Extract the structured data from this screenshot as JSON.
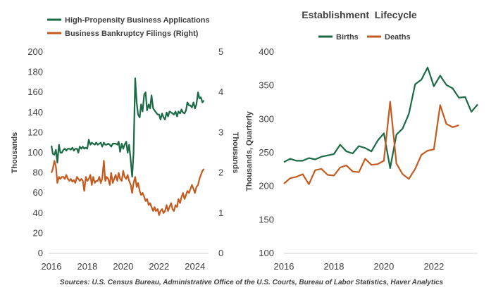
{
  "colors": {
    "green": "#1a6b45",
    "orange": "#c55a1e",
    "text": "#404040",
    "axis": "#d0d0d0"
  },
  "source": "Sources: U.S. Census Bureau, Administrative Office of the U.S. Courts, Bureau of Labor Statistics, Haver Analytics",
  "chart_data": [
    {
      "type": "line",
      "title": "",
      "legend_position": "top",
      "xlabel": "",
      "ylabel": "Thousands",
      "y2label": "Thousands",
      "xlim": [
        2016,
        2024.6
      ],
      "ylim": [
        0,
        200
      ],
      "y2lim": [
        0,
        5
      ],
      "x_ticks": [
        2016,
        2018,
        2020,
        2022,
        2024
      ],
      "x_tick_labels": [
        "2016",
        "2018",
        "2020",
        "2022",
        "2024"
      ],
      "y_ticks": [
        0,
        20,
        40,
        60,
        80,
        100,
        120,
        140,
        160,
        180,
        200
      ],
      "y_tick_labels": [
        "0",
        "20",
        "40",
        "60",
        "80",
        "100",
        "120",
        "140",
        "160",
        "180",
        "200"
      ],
      "y2_ticks": [
        0,
        1,
        2,
        3,
        4,
        5
      ],
      "y2_tick_labels": [
        "0",
        "1",
        "2",
        "3",
        "4",
        "5"
      ],
      "series": [
        {
          "name": "High-Propensity Business Applications",
          "axis": "left",
          "color": "green",
          "x": [
            2016.0,
            2016.08,
            2016.17,
            2016.25,
            2016.33,
            2016.42,
            2016.5,
            2016.58,
            2016.67,
            2016.75,
            2016.83,
            2016.92,
            2017.0,
            2017.08,
            2017.17,
            2017.25,
            2017.33,
            2017.42,
            2017.5,
            2017.58,
            2017.67,
            2017.75,
            2017.83,
            2017.92,
            2018.0,
            2018.08,
            2018.17,
            2018.25,
            2018.33,
            2018.42,
            2018.5,
            2018.58,
            2018.67,
            2018.75,
            2018.83,
            2018.92,
            2019.0,
            2019.08,
            2019.17,
            2019.25,
            2019.33,
            2019.42,
            2019.5,
            2019.58,
            2019.67,
            2019.75,
            2019.83,
            2019.92,
            2020.0,
            2020.08,
            2020.17,
            2020.25,
            2020.33,
            2020.42,
            2020.5,
            2020.58,
            2020.67,
            2020.75,
            2020.83,
            2020.92,
            2021.0,
            2021.08,
            2021.17,
            2021.25,
            2021.33,
            2021.42,
            2021.5,
            2021.58,
            2021.67,
            2021.75,
            2021.83,
            2021.92,
            2022.0,
            2022.08,
            2022.17,
            2022.25,
            2022.33,
            2022.42,
            2022.5,
            2022.58,
            2022.67,
            2022.75,
            2022.83,
            2022.92,
            2023.0,
            2023.08,
            2023.17,
            2023.25,
            2023.33,
            2023.42,
            2023.5,
            2023.58,
            2023.67,
            2023.75,
            2023.83,
            2023.92,
            2024.0,
            2024.08,
            2024.17,
            2024.25,
            2024.33,
            2024.42,
            2024.5
          ],
          "values": [
            107,
            99,
            98,
            103,
            90,
            108,
            100,
            100,
            103,
            104,
            102,
            104,
            104,
            103,
            105,
            102,
            104,
            104,
            100,
            106,
            104,
            106,
            104,
            105,
            104,
            113,
            108,
            110,
            109,
            108,
            110,
            108,
            109,
            110,
            106,
            110,
            108,
            108,
            109,
            108,
            106,
            109,
            109,
            109,
            108,
            111,
            101,
            109,
            104,
            108,
            111,
            100,
            108,
            92,
            76,
            100,
            174,
            150,
            138,
            135,
            148,
            141,
            158,
            160,
            142,
            148,
            144,
            157,
            144,
            142,
            140,
            138,
            138,
            133,
            139,
            135,
            133,
            140,
            136,
            141,
            140,
            139,
            138,
            141,
            136,
            141,
            139,
            143,
            140,
            139,
            142,
            150,
            147,
            147,
            145,
            150,
            144,
            148,
            160,
            154,
            155,
            150,
            152
          ]
        },
        {
          "name": "Business Bankruptcy Filings (Right)",
          "axis": "right",
          "color": "orange",
          "x": [
            2016.0,
            2016.08,
            2016.17,
            2016.25,
            2016.33,
            2016.42,
            2016.5,
            2016.58,
            2016.67,
            2016.75,
            2016.83,
            2016.92,
            2017.0,
            2017.08,
            2017.17,
            2017.25,
            2017.33,
            2017.42,
            2017.5,
            2017.58,
            2017.67,
            2017.75,
            2017.83,
            2017.92,
            2018.0,
            2018.08,
            2018.17,
            2018.25,
            2018.33,
            2018.42,
            2018.5,
            2018.58,
            2018.67,
            2018.75,
            2018.83,
            2018.92,
            2019.0,
            2019.08,
            2019.17,
            2019.25,
            2019.33,
            2019.42,
            2019.5,
            2019.58,
            2019.67,
            2019.75,
            2019.83,
            2019.92,
            2020.0,
            2020.08,
            2020.17,
            2020.25,
            2020.33,
            2020.42,
            2020.5,
            2020.58,
            2020.67,
            2020.75,
            2020.83,
            2020.92,
            2021.0,
            2021.08,
            2021.17,
            2021.25,
            2021.33,
            2021.42,
            2021.5,
            2021.58,
            2021.67,
            2021.75,
            2021.83,
            2021.92,
            2022.0,
            2022.08,
            2022.17,
            2022.25,
            2022.33,
            2022.42,
            2022.5,
            2022.58,
            2022.67,
            2022.75,
            2022.83,
            2022.92,
            2023.0,
            2023.08,
            2023.17,
            2023.25,
            2023.33,
            2023.42,
            2023.5,
            2023.58,
            2023.67,
            2023.75,
            2023.83,
            2023.92,
            2024.0,
            2024.08,
            2024.17,
            2024.25,
            2024.33,
            2024.42,
            2024.5
          ],
          "values": [
            2.0,
            2.1,
            2.3,
            2.15,
            1.75,
            1.9,
            1.85,
            1.9,
            1.9,
            1.85,
            1.95,
            1.85,
            1.8,
            1.85,
            1.78,
            1.82,
            1.75,
            1.9,
            1.85,
            1.8,
            1.85,
            1.8,
            1.55,
            1.9,
            1.8,
            1.85,
            1.95,
            1.7,
            1.9,
            1.75,
            1.8,
            1.8,
            1.9,
            1.75,
            1.85,
            2.3,
            1.8,
            1.9,
            1.85,
            1.7,
            2.0,
            1.75,
            1.85,
            1.95,
            1.8,
            2.0,
            1.85,
            1.8,
            2.05,
            1.9,
            1.85,
            1.95,
            1.8,
            1.7,
            1.5,
            1.75,
            1.9,
            1.65,
            1.75,
            1.55,
            1.45,
            1.5,
            1.4,
            1.3,
            1.35,
            1.2,
            1.25,
            1.15,
            1.05,
            1.15,
            1.05,
            1.1,
            0.95,
            1.05,
            1.1,
            1.0,
            1.05,
            1.2,
            1.05,
            1.15,
            1.25,
            1.1,
            1.05,
            1.2,
            1.15,
            1.35,
            1.25,
            1.4,
            1.5,
            1.35,
            1.45,
            1.55,
            1.5,
            1.6,
            1.7,
            1.6,
            1.5,
            1.65,
            1.7,
            1.85,
            1.95,
            2.05,
            2.1
          ]
        }
      ]
    },
    {
      "type": "line",
      "title": "Establishment  Lifecycle",
      "legend_position": "top",
      "xlabel": "",
      "ylabel": "Thousands, Quarterly",
      "xlim": [
        2016,
        2023.75
      ],
      "ylim": [
        100,
        400
      ],
      "x_ticks": [
        2016,
        2018,
        2020,
        2022
      ],
      "x_tick_labels": [
        "2016",
        "2018",
        "2020",
        "2022"
      ],
      "y_ticks": [
        100,
        150,
        200,
        250,
        300,
        350,
        400
      ],
      "y_tick_labels": [
        "100",
        "150",
        "200",
        "250",
        "300",
        "350",
        "400"
      ],
      "series": [
        {
          "name": "Births",
          "color": "green",
          "x": [
            2016.0,
            2016.25,
            2016.5,
            2016.75,
            2017.0,
            2017.25,
            2017.5,
            2017.75,
            2018.0,
            2018.25,
            2018.5,
            2018.75,
            2019.0,
            2019.25,
            2019.5,
            2019.75,
            2020.0,
            2020.25,
            2020.5,
            2020.75,
            2021.0,
            2021.25,
            2021.5,
            2021.75,
            2022.0,
            2022.25,
            2022.5,
            2022.75,
            2023.0,
            2023.25,
            2023.5,
            2023.75
          ],
          "values": [
            236,
            241,
            238,
            238,
            242,
            240,
            244,
            246,
            248,
            262,
            252,
            249,
            260,
            257,
            252,
            268,
            279,
            227,
            277,
            286,
            308,
            352,
            359,
            377,
            349,
            365,
            351,
            346,
            332,
            333,
            311,
            322
          ]
        },
        {
          "name": "Deaths",
          "color": "orange",
          "x": [
            2016.0,
            2016.25,
            2016.5,
            2016.75,
            2017.0,
            2017.25,
            2017.5,
            2017.75,
            2018.0,
            2018.25,
            2018.5,
            2018.75,
            2019.0,
            2019.25,
            2019.5,
            2019.75,
            2020.0,
            2020.25,
            2020.5,
            2020.75,
            2021.0,
            2021.25,
            2021.5,
            2021.75,
            2022.0,
            2022.25,
            2022.5,
            2022.75,
            2023.0
          ],
          "values": [
            204,
            212,
            214,
            218,
            203,
            224,
            226,
            217,
            216,
            228,
            231,
            222,
            221,
            241,
            232,
            233,
            238,
            326,
            234,
            218,
            211,
            226,
            247,
            253,
            255,
            321,
            293,
            288,
            291
          ]
        }
      ]
    }
  ]
}
